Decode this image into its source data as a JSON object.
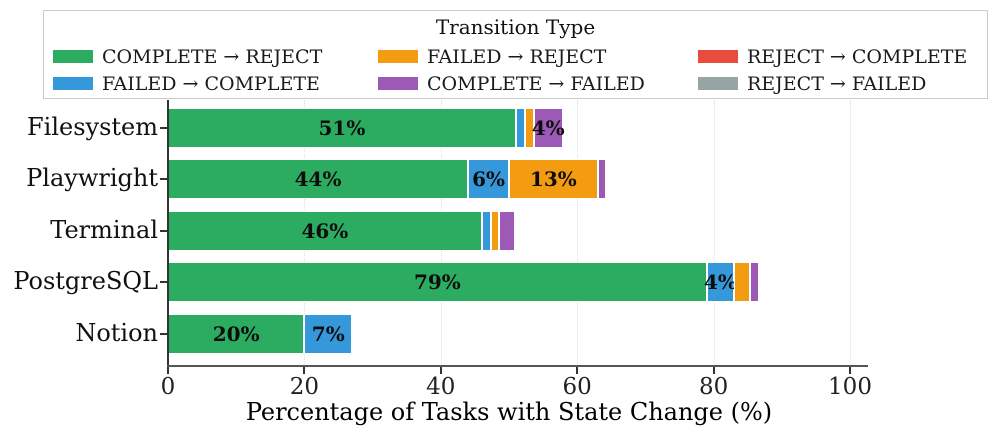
{
  "legend": {
    "title": "Transition Type",
    "columns": [
      [
        {
          "label": "COMPLETE → REJECT",
          "color": "green"
        },
        {
          "label": "FAILED → COMPLETE",
          "color": "blue"
        }
      ],
      [
        {
          "label": "FAILED → REJECT",
          "color": "orange"
        },
        {
          "label": "COMPLETE → FAILED",
          "color": "purple"
        }
      ],
      [
        {
          "label": "REJECT → COMPLETE",
          "color": "red"
        },
        {
          "label": "REJECT → FAILED",
          "color": "gray"
        }
      ]
    ]
  },
  "colors": {
    "green": "#2bac60",
    "blue": "#3498db",
    "orange": "#f39c12",
    "purple": "#9c59b6",
    "red": "#e74c3c",
    "gray": "#95a5a6"
  },
  "chart_data": {
    "type": "bar",
    "orientation": "horizontal",
    "stacked": true,
    "xlabel": "Percentage of Tasks with State Change (%)",
    "ylabel": "",
    "xlim": [
      0,
      105
    ],
    "xticks": [
      0,
      20,
      40,
      60,
      80,
      100
    ],
    "grid": "vertical-dotted",
    "legend_position": "top",
    "categories": [
      "Filesystem",
      "Playwright",
      "Terminal",
      "PostgreSQL",
      "Notion"
    ],
    "series": [
      {
        "name": "COMPLETE → REJECT",
        "color": "green",
        "values": [
          51,
          44,
          46,
          79,
          20
        ],
        "labels": [
          "51%",
          "44%",
          "46%",
          "79%",
          "20%"
        ]
      },
      {
        "name": "FAILED → COMPLETE",
        "color": "blue",
        "values": [
          1.3,
          6,
          1.3,
          4,
          7
        ],
        "labels": [
          null,
          "6%",
          null,
          "4%",
          "7%"
        ]
      },
      {
        "name": "FAILED → REJECT",
        "color": "orange",
        "values": [
          1.3,
          13,
          1.2,
          2.4,
          0
        ],
        "labels": [
          null,
          "13%",
          null,
          null,
          null
        ]
      },
      {
        "name": "COMPLETE → FAILED",
        "color": "purple",
        "values": [
          4.3,
          1.2,
          2.4,
          1.2,
          0
        ],
        "labels": [
          "4%",
          null,
          null,
          null,
          null
        ]
      },
      {
        "name": "REJECT → COMPLETE",
        "color": "red",
        "values": [
          0,
          0,
          0,
          0,
          0
        ],
        "labels": [
          null,
          null,
          null,
          null,
          null
        ]
      },
      {
        "name": "REJECT → FAILED",
        "color": "gray",
        "values": [
          0,
          0,
          0,
          0,
          0
        ],
        "labels": [
          null,
          null,
          null,
          null,
          null
        ]
      }
    ]
  }
}
